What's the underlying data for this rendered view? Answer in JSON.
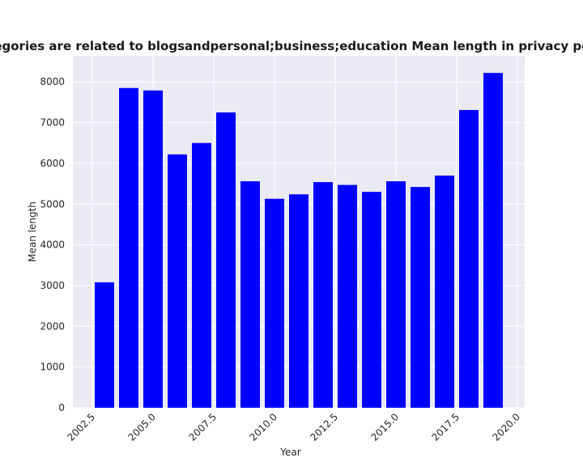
{
  "chart_data": {
    "type": "bar",
    "title": "categories are related to blogsandpersonal;business;education Mean length in privacy policies",
    "xlabel": "Year",
    "ylabel": "Mean length",
    "x": [
      2003,
      2004,
      2005,
      2006,
      2007,
      2008,
      2009,
      2010,
      2011,
      2012,
      2013,
      2014,
      2015,
      2016,
      2017,
      2018,
      2019
    ],
    "values": [
      3080,
      7850,
      7790,
      6220,
      6500,
      7250,
      5560,
      5130,
      5240,
      5540,
      5470,
      5300,
      5560,
      5420,
      5700,
      7310,
      8220
    ],
    "xlim": [
      2001.7,
      2020.3
    ],
    "ylim": [
      0,
      8640
    ],
    "xticks": [
      2002.5,
      2005.0,
      2007.5,
      2010.0,
      2012.5,
      2015.0,
      2017.5,
      2020.0
    ],
    "xtick_labels": [
      "2002.5",
      "2005.0",
      "2007.5",
      "2010.0",
      "2012.5",
      "2015.0",
      "2017.5",
      "2020.0"
    ],
    "yticks": [
      0,
      1000,
      2000,
      3000,
      4000,
      5000,
      6000,
      7000,
      8000
    ],
    "ytick_labels": [
      "0",
      "1000",
      "2000",
      "3000",
      "4000",
      "5000",
      "6000",
      "7000",
      "8000"
    ],
    "bar_color": "#0000ff",
    "background_color": "#eaeaf2",
    "grid_color": "#ffffff",
    "grid": true
  }
}
